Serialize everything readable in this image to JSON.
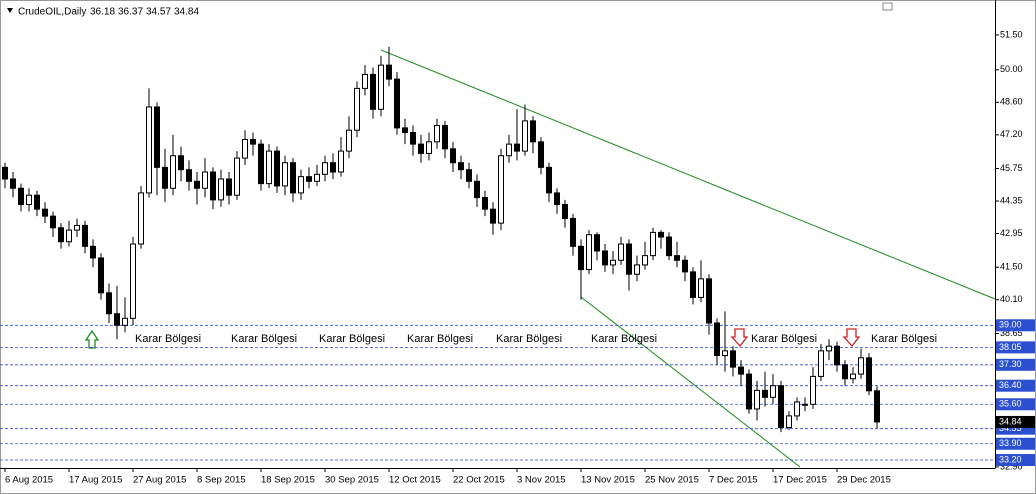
{
  "chart_data": {
    "type": "candlestick",
    "title": "CrudeOIL,Daily",
    "open": [
      45.8,
      45.3,
      44.9,
      44.2,
      44.6,
      44.0,
      43.7,
      43.2,
      42.6,
      43.1,
      43.3,
      42.4,
      41.9,
      40.4,
      39.5,
      39.0,
      39.3,
      42.5,
      44.7,
      48.4,
      45.8,
      44.9,
      46.3,
      45.7,
      45.2,
      44.9,
      45.6,
      44.4,
      45.3,
      44.6,
      46.2,
      47.0,
      46.8,
      45.1,
      46.5,
      45.0,
      46.0,
      44.7,
      45.4,
      45.2,
      45.5,
      46.0,
      45.6,
      46.5,
      47.4,
      49.2,
      49.8,
      48.3,
      50.2,
      49.6,
      47.5,
      47.3,
      46.8,
      46.4,
      46.9,
      47.6,
      46.6,
      46.0,
      45.7,
      45.2,
      44.5,
      44.0,
      43.4,
      46.3,
      46.8,
      46.5,
      47.8,
      46.9,
      45.8,
      44.7,
      44.2,
      43.6,
      42.4,
      41.4,
      42.9,
      42.2,
      41.6,
      41.8,
      42.5,
      41.2,
      41.6,
      42.0,
      43.0,
      42.8,
      42.0,
      41.8,
      41.3,
      40.2,
      41.0,
      39.1,
      37.7,
      37.9,
      37.2,
      36.9,
      35.4,
      36.2,
      35.9,
      36.4,
      34.6,
      35.1,
      35.6,
      35.6,
      36.8,
      37.9,
      38.1,
      37.3,
      36.7,
      36.9,
      37.6,
      36.18
    ],
    "high": [
      46.0,
      45.6,
      45.1,
      44.9,
      44.8,
      44.3,
      43.9,
      43.4,
      43.5,
      43.6,
      43.5,
      42.7,
      42.1,
      40.8,
      40.7,
      40.2,
      42.8,
      45.0,
      49.2,
      48.6,
      46.6,
      47.2,
      46.7,
      46.1,
      45.6,
      46.2,
      45.8,
      45.7,
      45.6,
      46.5,
      47.4,
      47.3,
      47.0,
      46.8,
      46.7,
      46.3,
      46.2,
      45.7,
      45.8,
      45.9,
      46.3,
      46.4,
      47.1,
      48.0,
      49.5,
      50.2,
      50.1,
      50.6,
      51.0,
      49.9,
      47.9,
      47.6,
      47.2,
      47.3,
      47.9,
      47.8,
      46.9,
      46.3,
      46.0,
      45.5,
      44.8,
      44.3,
      46.6,
      47.2,
      48.3,
      48.5,
      48.0,
      47.1,
      46.0,
      44.9,
      44.4,
      43.8,
      42.7,
      43.1,
      43.0,
      42.5,
      42.2,
      42.8,
      42.7,
      42.0,
      42.6,
      43.2,
      43.1,
      43.0,
      42.6,
      42.0,
      41.5,
      41.8,
      41.2,
      39.3,
      39.6,
      38.1,
      37.5,
      37.1,
      36.6,
      37.0,
      36.9,
      36.6,
      35.3,
      35.9,
      35.9,
      37.2,
      38.2,
      38.4,
      38.3,
      37.5,
      37.2,
      38.0,
      37.8,
      36.37
    ],
    "low": [
      44.9,
      44.5,
      43.9,
      43.9,
      43.7,
      43.4,
      42.8,
      42.3,
      42.4,
      42.8,
      42.1,
      41.5,
      40.1,
      39.1,
      38.4,
      38.7,
      39.0,
      42.3,
      44.5,
      44.6,
      44.3,
      44.6,
      45.2,
      44.8,
      44.2,
      44.5,
      44.0,
      44.1,
      44.2,
      44.4,
      45.9,
      46.3,
      44.8,
      44.9,
      44.7,
      44.6,
      44.3,
      44.4,
      44.9,
      45.0,
      45.2,
      45.3,
      45.4,
      46.2,
      47.1,
      48.9,
      47.9,
      48.0,
      49.3,
      47.2,
      46.8,
      46.3,
      46.0,
      46.1,
      46.6,
      46.2,
      45.6,
      45.3,
      44.9,
      44.1,
      43.7,
      42.9,
      43.1,
      46.0,
      46.1,
      46.3,
      46.4,
      45.5,
      44.3,
      43.8,
      43.2,
      42.0,
      40.1,
      41.2,
      41.8,
      41.3,
      41.2,
      41.6,
      40.5,
      40.9,
      41.4,
      41.8,
      42.3,
      41.8,
      41.5,
      40.9,
      39.9,
      40.0,
      38.6,
      37.3,
      37.0,
      36.8,
      36.4,
      35.2,
      34.9,
      35.5,
      35.6,
      34.4,
      34.5,
      34.9,
      35.3,
      35.4,
      36.6,
      37.5,
      37.0,
      36.4,
      36.5,
      36.7,
      36.0,
      34.57
    ],
    "close": [
      45.3,
      44.9,
      44.2,
      44.6,
      44.0,
      43.7,
      43.2,
      42.6,
      43.1,
      43.3,
      42.4,
      41.9,
      40.4,
      39.5,
      39.0,
      39.3,
      42.5,
      44.7,
      48.4,
      45.8,
      44.9,
      46.3,
      45.7,
      45.2,
      44.9,
      45.6,
      44.4,
      45.3,
      44.6,
      46.2,
      47.0,
      46.8,
      45.1,
      46.5,
      45.0,
      46.0,
      44.7,
      45.4,
      45.2,
      45.5,
      46.0,
      45.6,
      46.5,
      47.4,
      49.2,
      49.8,
      48.3,
      50.2,
      49.6,
      47.5,
      47.3,
      46.8,
      46.4,
      46.9,
      47.6,
      46.6,
      46.0,
      45.7,
      45.2,
      44.5,
      44.0,
      43.4,
      46.3,
      46.8,
      46.5,
      47.8,
      46.9,
      45.8,
      44.7,
      44.2,
      43.6,
      42.4,
      41.4,
      42.9,
      42.2,
      41.6,
      41.8,
      42.5,
      41.2,
      41.6,
      42.0,
      43.0,
      42.8,
      42.0,
      41.8,
      41.3,
      40.2,
      41.0,
      39.1,
      37.7,
      37.9,
      37.2,
      36.9,
      35.4,
      36.2,
      35.9,
      36.4,
      34.6,
      35.1,
      35.7,
      35.6,
      36.8,
      37.9,
      38.1,
      37.3,
      36.7,
      36.9,
      37.6,
      36.18,
      34.84
    ],
    "xlim": [
      -0.625,
      123.75
    ],
    "xticks": [
      {
        "value": 0,
        "label": "6 Aug 2015"
      },
      {
        "value": 8,
        "label": "17 Aug 2015"
      },
      {
        "value": 16,
        "label": "27 Aug 2015"
      },
      {
        "value": 24,
        "label": "8 Sep 2015"
      },
      {
        "value": 32,
        "label": "18 Sep 2015"
      },
      {
        "value": 40,
        "label": "30 Sep 2015"
      },
      {
        "value": 48,
        "label": "12 Oct 2015"
      },
      {
        "value": 56,
        "label": "22 Oct 2015"
      },
      {
        "value": 64,
        "label": "3 Nov 2015"
      },
      {
        "value": 72,
        "label": "13 Nov 2015"
      },
      {
        "value": 80,
        "label": "25 Nov 2015"
      },
      {
        "value": 88,
        "label": "7 Dec 2015"
      },
      {
        "value": 96,
        "label": "17 Dec 2015"
      },
      {
        "value": 104,
        "label": "29 Dec 2015"
      }
    ],
    "ylim": [
      32.9,
      52.79
    ],
    "yticks": [
      {
        "value": 51.5,
        "label": "51.50"
      },
      {
        "value": 50.0,
        "label": "50.00"
      },
      {
        "value": 48.6,
        "label": "48.60"
      },
      {
        "value": 47.2,
        "label": "47.20"
      },
      45.75,
      44.35,
      42.95,
      {
        "value": 41.5,
        "label": "41.50"
      },
      {
        "value": 40.1,
        "label": "40.10"
      },
      38.65,
      {
        "value": 32.9,
        "label": "32.90"
      }
    ],
    "levels": [
      {
        "value": 39.0,
        "label": "39.00"
      },
      {
        "value": 38.05,
        "label": "38.05"
      },
      {
        "value": 37.3,
        "label": "37.30"
      },
      {
        "value": 36.4,
        "label": "36.40"
      },
      {
        "value": 35.6,
        "label": "35.60"
      },
      {
        "value": 34.55,
        "label": "34.55"
      },
      {
        "value": 33.9,
        "label": "33.90"
      },
      {
        "value": 33.2,
        "label": "33.20"
      }
    ],
    "annotations": [
      "Karar Bölgesi",
      "Karar Bölgesi",
      "Karar Bölgesi",
      "Karar Bölgesi",
      "Karar Bölgesi",
      "Karar Bölgesi",
      "Karar Bölgesi",
      "Karar Bölgesi"
    ],
    "candle_color": "#000000",
    "level_color": "#2a4fd0",
    "trend_color": "#1a8a1a"
  }
}
